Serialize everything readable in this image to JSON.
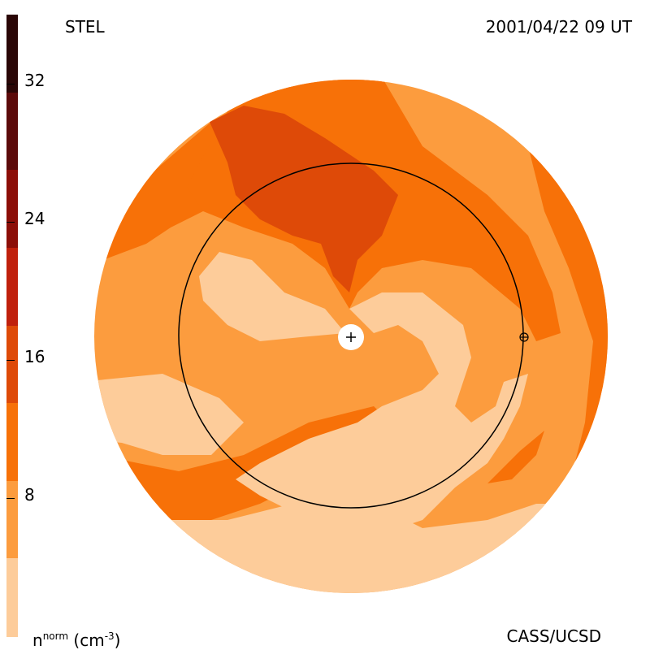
{
  "header": {
    "station": "STEL",
    "timestamp": "2001/04/22 09 UT"
  },
  "footer": {
    "unit_base": "n",
    "unit_sup": "norm",
    "unit_rest": "(cm",
    "unit_exp": "-3",
    "unit_close": ")",
    "credit": "CASS/UCSD"
  },
  "colorbar": {
    "levels": [
      {
        "color": "#2a0606"
      },
      {
        "color": "#5c0a0a"
      },
      {
        "color": "#8c0e08"
      },
      {
        "color": "#c0200c"
      },
      {
        "color": "#de4a08"
      },
      {
        "color": "#f77108"
      },
      {
        "color": "#fc9c3e"
      },
      {
        "color": "#fdcc9a"
      }
    ],
    "ticks": [
      {
        "label": "32",
        "value": 32
      },
      {
        "label": "24",
        "value": 24
      },
      {
        "label": "16",
        "value": 16
      },
      {
        "label": "8",
        "value": 8
      }
    ],
    "range": [
      0,
      36
    ]
  },
  "map_colors": {
    "c1": "#fdcc9a",
    "c2": "#fc9c3e",
    "c3": "#f77108",
    "c4": "#de4a08",
    "c5": "#c0200c"
  }
}
